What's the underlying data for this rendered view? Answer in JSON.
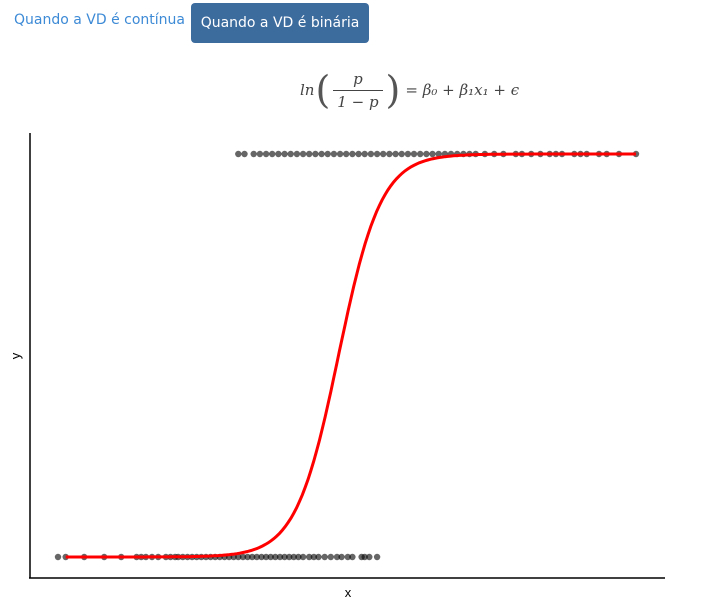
{
  "tabs": {
    "link_label": "Quando a VD é contínua",
    "active_label": "Quando a VD é binária"
  },
  "formula": {
    "lhs_prefix": "ln",
    "numerator": "p",
    "denominator": "1 − p",
    "rhs": "= β₀ + β₁x₁ + ϵ"
  },
  "chart_data": {
    "type": "scatter",
    "xlabel": "x",
    "ylabel": "y",
    "ylim": [
      0,
      1
    ],
    "grid": false,
    "point_color": "#000000",
    "curve_color": "#ff0000",
    "series": [
      {
        "x": [
          -5.6,
          -5.35,
          -4.75,
          -4.1,
          -3.55,
          -3.05,
          -2.9,
          -2.75,
          -2.55,
          -2.35,
          -2.1,
          -1.95,
          -1.8,
          -1.7,
          -1.55,
          -1.4,
          -1.25,
          -1.1,
          -0.95,
          -0.8,
          -0.65,
          -0.5,
          -0.35,
          -0.2,
          -0.05,
          0.1,
          0.25,
          0.4,
          0.55,
          0.7,
          0.85,
          1.0,
          1.15,
          1.3,
          1.45,
          1.6,
          1.75,
          1.9,
          2.05,
          2.2,
          2.35,
          2.55,
          2.7,
          2.85,
          3.05,
          3.25,
          3.45,
          3.6,
          3.8,
          3.95,
          4.25,
          4.35,
          4.5,
          4.75
        ],
        "y": [
          0,
          0,
          0,
          0,
          0,
          0,
          0,
          0,
          0,
          0,
          0,
          0,
          0,
          0,
          0,
          0,
          0,
          0,
          0,
          0,
          0,
          0,
          0,
          0,
          0,
          0,
          0,
          0,
          0,
          0,
          0,
          0,
          0,
          0,
          0,
          0,
          0,
          0,
          0,
          0,
          0,
          0,
          0,
          0,
          0,
          0,
          0,
          0,
          0,
          0,
          0,
          0,
          0,
          0
        ]
      },
      {
        "x": [
          0.25,
          0.45,
          0.75,
          0.95,
          1.15,
          1.35,
          1.55,
          1.75,
          1.95,
          2.15,
          2.35,
          2.55,
          2.75,
          2.95,
          3.15,
          3.35,
          3.55,
          3.75,
          3.95,
          4.15,
          4.35,
          4.55,
          4.75,
          4.95,
          5.15,
          5.35,
          5.55,
          5.75,
          5.95,
          6.15,
          6.35,
          6.55,
          6.75,
          6.95,
          7.15,
          7.35,
          7.55,
          7.75,
          7.95,
          8.25,
          8.55,
          8.85,
          9.25,
          9.45,
          9.75,
          10.05,
          10.35,
          10.55,
          10.75,
          11.15,
          11.35,
          11.55,
          11.95,
          12.2,
          12.6,
          13.15
        ],
        "y": [
          1,
          1,
          1,
          1,
          1,
          1,
          1,
          1,
          1,
          1,
          1,
          1,
          1,
          1,
          1,
          1,
          1,
          1,
          1,
          1,
          1,
          1,
          1,
          1,
          1,
          1,
          1,
          1,
          1,
          1,
          1,
          1,
          1,
          1,
          1,
          1,
          1,
          1,
          1,
          1,
          1,
          1,
          1,
          1,
          1,
          1,
          1,
          1,
          1,
          1,
          1,
          1,
          1,
          1,
          1,
          1
        ]
      }
    ],
    "fitted_curve": {
      "type": "logistic",
      "midpoint": 3.5,
      "scale": 0.69,
      "x_from": -5.35,
      "x_to": 13.15
    }
  }
}
